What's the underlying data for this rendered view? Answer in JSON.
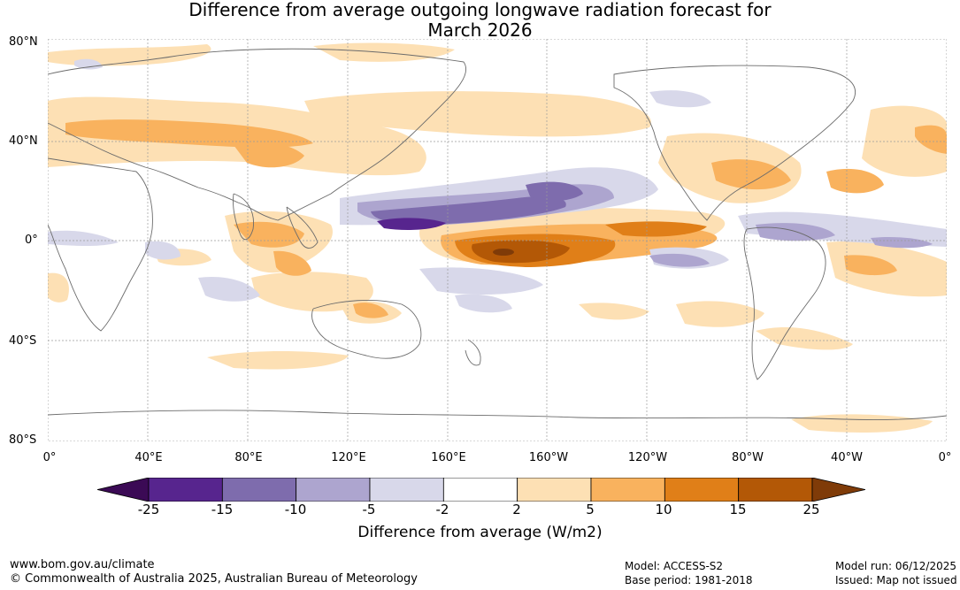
{
  "title": {
    "line1": "Difference from average outgoing longwave radiation forecast for",
    "line2": "March 2026"
  },
  "lat_labels": [
    "80°N",
    "40°N",
    "0°",
    "40°S",
    "80°S"
  ],
  "lon_labels": [
    "0°",
    "40°E",
    "80°E",
    "120°E",
    "160°E",
    "160°W",
    "120°W",
    "80°W",
    "40°W",
    "0°"
  ],
  "colorbar": {
    "ticks": [
      "-25",
      "-15",
      "-10",
      "-5",
      "-2",
      "2",
      "5",
      "10",
      "15",
      "25"
    ],
    "colors": [
      "#3b0a55",
      "#57258e",
      "#7e6cad",
      "#ada5cf",
      "#d8d8ea",
      "#ffffff",
      "#fde0b4",
      "#f9b25e",
      "#e07f18",
      "#b35806",
      "#7f3b08"
    ],
    "label": "Difference from average (W/m2)"
  },
  "footer": {
    "website": "www.bom.gov.au/climate",
    "copyright": "© Commonwealth of Australia 2025, Australian Bureau of Meteorology",
    "model": "Model: ACCESS-S2",
    "base_period": "Base period: 1981-2018",
    "model_run": "Model run: 06/12/2025",
    "issued": "Issued: Map not issued"
  }
}
